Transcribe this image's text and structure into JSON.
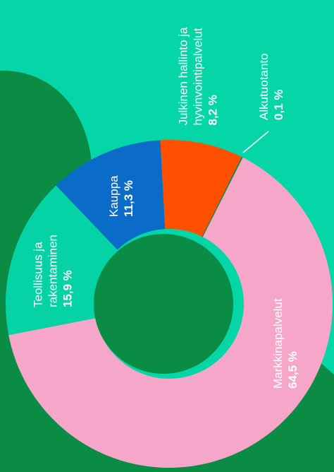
{
  "chart_data": {
    "type": "donut",
    "categories": [
      "Teollisuus ja rakentaminen",
      "Kauppa",
      "Julkinen hallinto ja hyvinvointipalvelut",
      "Alkutuotanto",
      "Markkinapalvelut"
    ],
    "values": [
      15.9,
      11.3,
      8.2,
      0.1,
      64.5
    ],
    "value_labels": [
      "15,9 %",
      "11,3 %",
      "8,2 %",
      "0,1 %",
      "64,5 %"
    ],
    "colors": [
      "#05d3a5",
      "#0b6bc9",
      "#fe5000",
      "#0a8c45",
      "#f6a6c9"
    ]
  }
}
